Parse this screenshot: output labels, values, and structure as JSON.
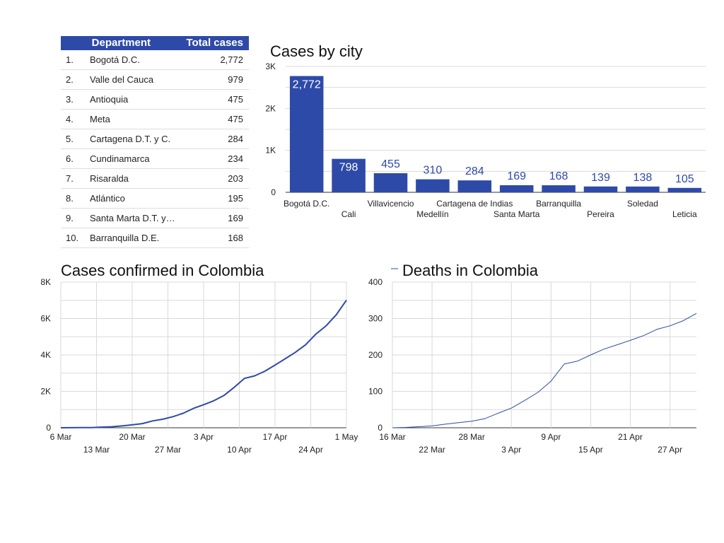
{
  "table": {
    "headers": {
      "department": "Department",
      "total": "Total cases"
    },
    "rows": [
      {
        "rank": "1.",
        "name": "Bogotá D.C.",
        "total": "2,772"
      },
      {
        "rank": "2.",
        "name": "Valle del Cauca",
        "total": "979"
      },
      {
        "rank": "3.",
        "name": "Antioquia",
        "total": "475"
      },
      {
        "rank": "4.",
        "name": "Meta",
        "total": "475"
      },
      {
        "rank": "5.",
        "name": "Cartagena D.T. y C.",
        "total": "284"
      },
      {
        "rank": "6.",
        "name": "Cundinamarca",
        "total": "234"
      },
      {
        "rank": "7.",
        "name": "Risaralda",
        "total": "203"
      },
      {
        "rank": "8.",
        "name": "Atlántico",
        "total": "195"
      },
      {
        "rank": "9.",
        "name": "Santa Marta D.T. y…",
        "total": "169"
      },
      {
        "rank": "10.",
        "name": "Barranquilla D.E.",
        "total": "168"
      }
    ]
  },
  "colors": {
    "accent": "#2e4aa8",
    "header_bg": "#2e4aa8",
    "grid": "#d9d9d9"
  },
  "chart_data": [
    {
      "type": "bar",
      "title": "Cases by city",
      "categories": [
        "Bogotá D.C.",
        "Cali",
        "Villavicencio",
        "Medellín",
        "Cartagena de Indias",
        "Santa Marta",
        "Barranquilla",
        "Pereira",
        "Soledad",
        "Leticia"
      ],
      "values": [
        2772,
        798,
        455,
        310,
        284,
        169,
        168,
        139,
        138,
        105
      ],
      "data_labels": [
        "2,772",
        "798",
        "455",
        "310",
        "284",
        "169",
        "168",
        "139",
        "138",
        "105"
      ],
      "ylim": [
        0,
        3000
      ],
      "yticks": [
        0,
        1000,
        2000,
        3000
      ],
      "ytick_labels": [
        "0",
        "1K",
        "2K",
        "3K"
      ],
      "grid": true,
      "color": "#2e4aa8"
    },
    {
      "type": "line",
      "title": "Cases confirmed in Colombia",
      "x": [
        "2020-03-06",
        "2020-03-08",
        "2020-03-10",
        "2020-03-12",
        "2020-03-14",
        "2020-03-16",
        "2020-03-18",
        "2020-03-20",
        "2020-03-22",
        "2020-03-24",
        "2020-03-26",
        "2020-03-28",
        "2020-03-30",
        "2020-04-01",
        "2020-04-03",
        "2020-04-05",
        "2020-04-07",
        "2020-04-09",
        "2020-04-11",
        "2020-04-13",
        "2020-04-15",
        "2020-04-17",
        "2020-04-19",
        "2020-04-21",
        "2020-04-23",
        "2020-04-25",
        "2020-04-27",
        "2020-04-29",
        "2020-05-01"
      ],
      "y": [
        1,
        3,
        9,
        13,
        34,
        54,
        102,
        158,
        231,
        378,
        470,
        608,
        798,
        1065,
        1267,
        1485,
        1780,
        2223,
        2709,
        2852,
        3105,
        3439,
        3792,
        4149,
        4561,
        5142,
        5597,
        6207,
        7006
      ],
      "ylim": [
        0,
        8000
      ],
      "yticks": [
        0,
        2000,
        4000,
        6000,
        8000
      ],
      "ytick_labels": [
        "0",
        "2K",
        "4K",
        "6K",
        "8K"
      ],
      "xlim": [
        "2020-03-06",
        "2020-05-01"
      ],
      "xticks": [
        "2020-03-06",
        "2020-03-13",
        "2020-03-20",
        "2020-03-27",
        "2020-04-03",
        "2020-04-10",
        "2020-04-17",
        "2020-04-24",
        "2020-05-01"
      ],
      "xtick_labels": [
        "6 Mar",
        "13 Mar",
        "20 Mar",
        "27 Mar",
        "3 Apr",
        "10 Apr",
        "17 Apr",
        "24 Apr",
        "1 May"
      ],
      "grid": true,
      "color": "#2e4aa8"
    },
    {
      "type": "line",
      "title": "Deaths in Colombia",
      "x": [
        "2020-03-16",
        "2020-03-18",
        "2020-03-20",
        "2020-03-22",
        "2020-03-24",
        "2020-03-26",
        "2020-03-28",
        "2020-03-30",
        "2020-04-01",
        "2020-04-03",
        "2020-04-05",
        "2020-04-07",
        "2020-04-09",
        "2020-04-11",
        "2020-04-13",
        "2020-04-15",
        "2020-04-17",
        "2020-04-19",
        "2020-04-21",
        "2020-04-23",
        "2020-04-25",
        "2020-04-27",
        "2020-04-29",
        "2020-05-01"
      ],
      "y": [
        0,
        1,
        3,
        5,
        10,
        14,
        18,
        25,
        40,
        54,
        75,
        97,
        128,
        175,
        183,
        200,
        216,
        228,
        240,
        253,
        270,
        280,
        294,
        314
      ],
      "ylim": [
        0,
        400
      ],
      "yticks": [
        0,
        100,
        200,
        300,
        400
      ],
      "ytick_labels": [
        "0",
        "100",
        "200",
        "300",
        "400"
      ],
      "xlim": [
        "2020-03-16",
        "2020-05-01"
      ],
      "xticks": [
        "2020-03-16",
        "2020-03-22",
        "2020-03-28",
        "2020-04-03",
        "2020-04-09",
        "2020-04-15",
        "2020-04-21",
        "2020-04-27"
      ],
      "xtick_labels": [
        "16 Mar",
        "22 Mar",
        "28 Mar",
        "3 Apr",
        "9 Apr",
        "15 Apr",
        "21 Apr",
        "27 Apr"
      ],
      "grid": true,
      "color": "#2e4aa8"
    }
  ]
}
